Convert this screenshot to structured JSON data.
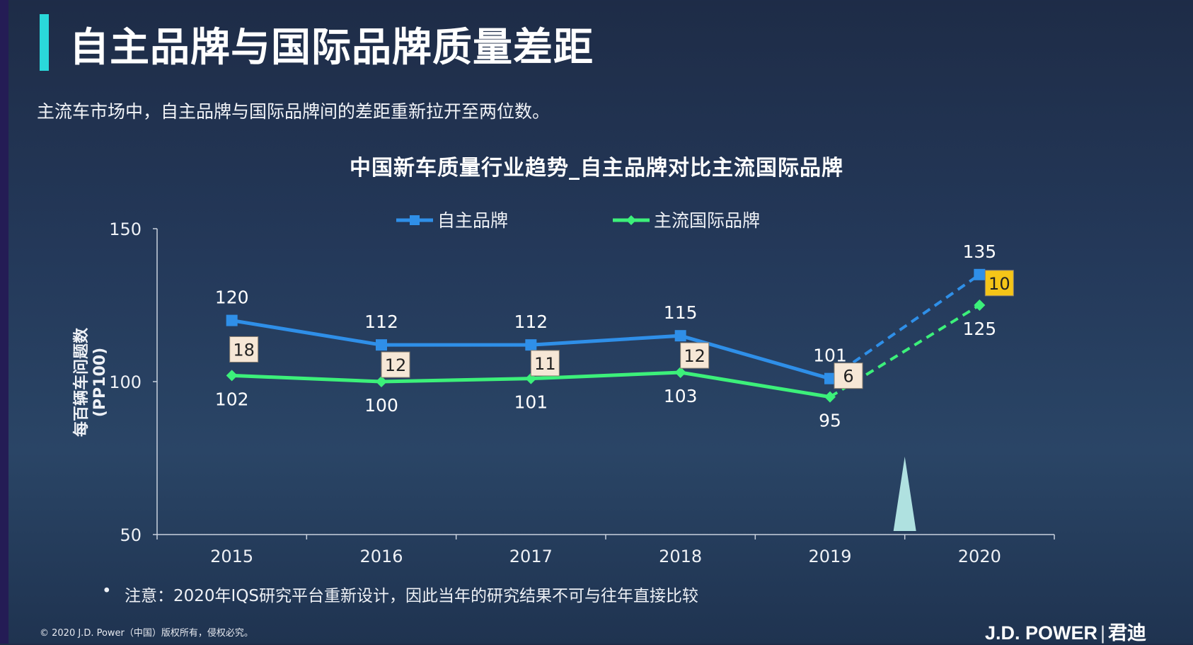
{
  "header": {
    "title": "自主品牌与国际品牌质量差距",
    "subtitle": "主流车市场中，自主品牌与国际品牌间的差距重新拉开至两位数。"
  },
  "footer": {
    "note": "注意：2020年IQS研究平台重新设计，因此当年的研究结果不可与往年直接比较",
    "copyright": "© 2020 J.D. Power（中国）版权所有，侵权必究。",
    "brand": "J.D. POWER",
    "brand_cn": "君迪"
  },
  "colors": {
    "accent_bar": "#2ad8da",
    "series_domestic": "#2f8fe8",
    "series_international": "#3cf07a",
    "gap_label_bg": "#f6e7d6",
    "gap_label_highlight": "#f5c518"
  },
  "chart_data": {
    "type": "line",
    "title": "中国新车质量行业趋势_自主品牌对比主流国际品牌",
    "ylabel": "每百辆车问题数\n(PP100)",
    "xlabel": "",
    "ylim": [
      50,
      150
    ],
    "yticks": [
      50,
      100,
      150
    ],
    "categories": [
      "2015",
      "2016",
      "2017",
      "2018",
      "2019",
      "2020"
    ],
    "legend_position": "top-center",
    "grid": false,
    "series": [
      {
        "name": "自主品牌",
        "color": "#2f8fe8",
        "marker": "square",
        "values": [
          120,
          112,
          112,
          115,
          101,
          135
        ]
      },
      {
        "name": "主流国际品牌",
        "color": "#3cf07a",
        "marker": "diamond",
        "values": [
          102,
          100,
          101,
          103,
          95,
          125
        ]
      }
    ],
    "dashed_segment": "2019-2020",
    "gaps": [
      18,
      12,
      11,
      12,
      6,
      10
    ],
    "highlighted_gap": "2020"
  }
}
